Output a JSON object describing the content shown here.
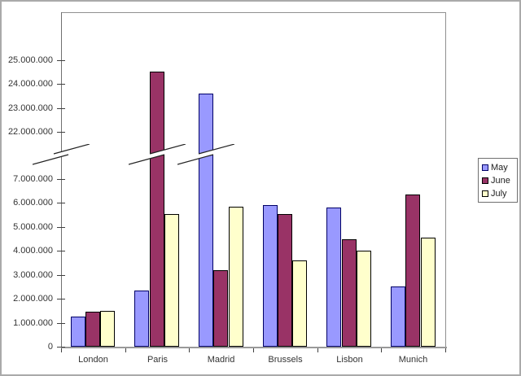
{
  "chart_data": {
    "type": "bar",
    "title": "",
    "xlabel": "",
    "ylabel": "",
    "grid": false,
    "categories": [
      "London",
      "Paris",
      "Madrid",
      "Brussels",
      "Lisbon",
      "Munich"
    ],
    "series": [
      {
        "name": "May",
        "color": "#9999FF",
        "border": "#000066",
        "values": [
          1250000,
          2350000,
          23600000,
          5900000,
          5800000,
          2500000
        ]
      },
      {
        "name": "June",
        "color": "#993366",
        "border": "#000000",
        "values": [
          1450000,
          24500000,
          3200000,
          5550000,
          4500000,
          6350000
        ]
      },
      {
        "name": "July",
        "color": "#FFFFCC",
        "border": "#000000",
        "values": [
          1500000,
          5550000,
          5850000,
          3600000,
          4000000,
          4550000
        ]
      }
    ],
    "y_axis": {
      "has_break": true,
      "break_between": [
        7000000,
        22000000
      ],
      "upper": [
        {
          "label": "25.000.000",
          "value": 25000000
        },
        {
          "label": "24.000.000",
          "value": 24000000
        },
        {
          "label": "23.000.000",
          "value": 23000000
        },
        {
          "label": "22.000.000",
          "value": 22000000
        }
      ],
      "lower": [
        {
          "label": "7.000.000",
          "value": 7000000
        },
        {
          "label": "6.000.000",
          "value": 6000000
        },
        {
          "label": "5.000.000",
          "value": 5000000
        },
        {
          "label": "4.000.000",
          "value": 4000000
        },
        {
          "label": "3.000.000",
          "value": 3000000
        },
        {
          "label": "2.000.000",
          "value": 2000000
        },
        {
          "label": "1.000.000",
          "value": 1000000
        },
        {
          "label": "0",
          "value": 0
        }
      ]
    },
    "legend": {
      "position": "right",
      "entries": [
        "May",
        "June",
        "July"
      ]
    }
  }
}
